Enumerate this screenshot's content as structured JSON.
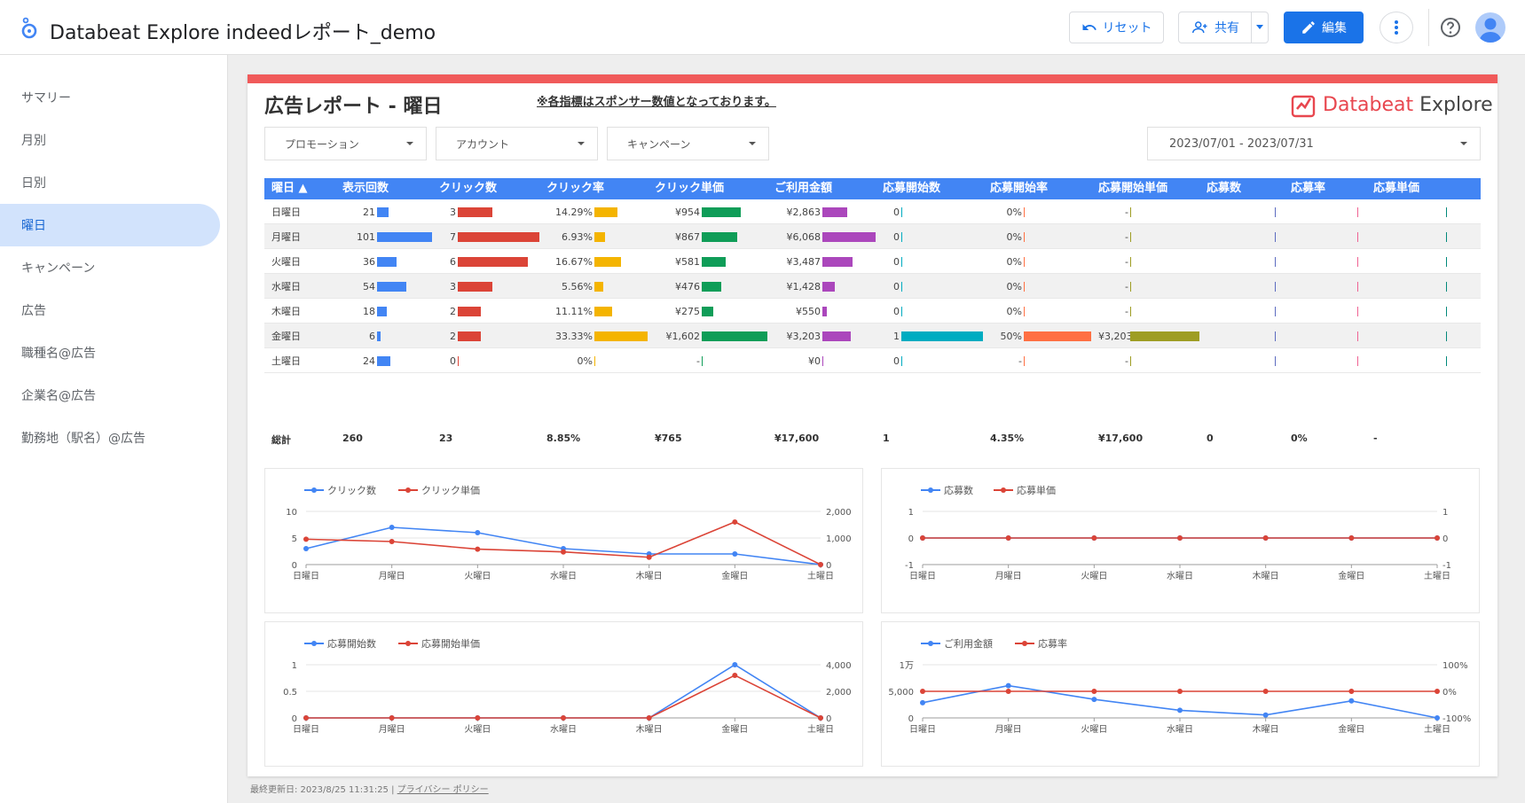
{
  "header": {
    "title": "Databeat Explore indeedレポート_demo",
    "reset_label": "リセット",
    "share_label": "共有",
    "edit_label": "編集"
  },
  "sidebar": {
    "items": [
      {
        "label": "サマリー",
        "active": false
      },
      {
        "label": "月別",
        "active": false
      },
      {
        "label": "日別",
        "active": false
      },
      {
        "label": "曜日",
        "active": true
      },
      {
        "label": "キャンペーン",
        "active": false
      },
      {
        "label": "広告",
        "active": false
      },
      {
        "label": "職種名@広告",
        "active": false
      },
      {
        "label": "企業名@広告",
        "active": false
      },
      {
        "label": "勤務地（駅名）@広告",
        "active": false
      }
    ]
  },
  "report": {
    "title": "広告レポート - 曜日",
    "note": "※各指標はスポンサー数値となっております。",
    "brand_a": "Databeat",
    "brand_b": " Explore",
    "filters": {
      "promotion": "プロモーション",
      "account": "アカウント",
      "campaign": "キャンペーン",
      "date_range": "2023/07/01 - 2023/07/31"
    }
  },
  "table": {
    "headers": [
      "曜日 ▲",
      "表示回数",
      "クリック数",
      "クリック率",
      "クリック単価",
      "ご利用金額",
      "応募開始数",
      "応募開始率",
      "応募開始単価",
      "応募数",
      "応募率",
      "応募単価"
    ],
    "bar_colors": [
      "#4285f4",
      "#db4437",
      "#f4b400",
      "#0f9d58",
      "#ab47bc",
      "#00acc1",
      "#ff7043",
      "#9e9d24",
      "#5c6bc0",
      "#f06292",
      "#00897b"
    ],
    "rows": [
      {
        "day": "日曜日",
        "labels": [
          "21",
          "3",
          "14.29%",
          "¥954",
          "¥2,863",
          "0",
          "0%",
          "-",
          "",
          "",
          ""
        ],
        "values": [
          21,
          3,
          14.29,
          954,
          2863,
          0,
          0,
          0,
          0,
          0,
          0
        ]
      },
      {
        "day": "月曜日",
        "labels": [
          "101",
          "7",
          "6.93%",
          "¥867",
          "¥6,068",
          "0",
          "0%",
          "-",
          "",
          "",
          ""
        ],
        "values": [
          101,
          7,
          6.93,
          867,
          6068,
          0,
          0,
          0,
          0,
          0,
          0
        ]
      },
      {
        "day": "火曜日",
        "labels": [
          "36",
          "6",
          "16.67%",
          "¥581",
          "¥3,487",
          "0",
          "0%",
          "-",
          "",
          "",
          ""
        ],
        "values": [
          36,
          6,
          16.67,
          581,
          3487,
          0,
          0,
          0,
          0,
          0,
          0
        ]
      },
      {
        "day": "水曜日",
        "labels": [
          "54",
          "3",
          "5.56%",
          "¥476",
          "¥1,428",
          "0",
          "0%",
          "-",
          "",
          "",
          ""
        ],
        "values": [
          54,
          3,
          5.56,
          476,
          1428,
          0,
          0,
          0,
          0,
          0,
          0
        ]
      },
      {
        "day": "木曜日",
        "labels": [
          "18",
          "2",
          "11.11%",
          "¥275",
          "¥550",
          "0",
          "0%",
          "-",
          "",
          "",
          ""
        ],
        "values": [
          18,
          2,
          11.11,
          275,
          550,
          0,
          0,
          0,
          0,
          0,
          0
        ]
      },
      {
        "day": "金曜日",
        "labels": [
          "6",
          "2",
          "33.33%",
          "¥1,602",
          "¥3,203",
          "1",
          "50%",
          "¥3,203",
          "",
          "",
          ""
        ],
        "values": [
          6,
          2,
          33.33,
          1602,
          3203,
          1,
          50,
          3203,
          0,
          0,
          0
        ]
      },
      {
        "day": "土曜日",
        "labels": [
          "24",
          "0",
          "0%",
          "-",
          "¥0",
          "0",
          "-",
          "-",
          "",
          "",
          ""
        ],
        "values": [
          24,
          0,
          0,
          0,
          0,
          0,
          0,
          0,
          0,
          0,
          0
        ]
      }
    ],
    "totals": [
      "総計",
      "260",
      "23",
      "8.85%",
      "¥765",
      "¥17,600",
      "1",
      "4.35%",
      "¥17,600",
      "0",
      "0%",
      "-"
    ]
  },
  "charts": [
    {
      "series": [
        {
          "name": "クリック数",
          "color": "#4285f4",
          "axis": "left",
          "values": [
            3,
            7,
            6,
            3,
            2,
            2,
            0
          ]
        },
        {
          "name": "クリック単価",
          "color": "#db4437",
          "axis": "right",
          "values": [
            954,
            867,
            581,
            476,
            275,
            1602,
            0
          ]
        }
      ],
      "categories": [
        "日曜日",
        "月曜日",
        "火曜日",
        "水曜日",
        "木曜日",
        "金曜日",
        "土曜日"
      ],
      "left_ticks": [
        "10",
        "5",
        "0"
      ],
      "left_range": [
        0,
        10
      ],
      "right_ticks": [
        "2,000",
        "1,000",
        "0"
      ],
      "right_range": [
        0,
        2000
      ]
    },
    {
      "series": [
        {
          "name": "応募数",
          "color": "#4285f4",
          "axis": "left",
          "values": [
            0,
            0,
            0,
            0,
            0,
            0,
            0
          ]
        },
        {
          "name": "応募単価",
          "color": "#db4437",
          "axis": "right",
          "values": [
            0,
            0,
            0,
            0,
            0,
            0,
            0
          ]
        }
      ],
      "categories": [
        "日曜日",
        "月曜日",
        "火曜日",
        "水曜日",
        "木曜日",
        "金曜日",
        "土曜日"
      ],
      "left_ticks": [
        "1",
        "0",
        "-1"
      ],
      "left_range": [
        -1,
        1
      ],
      "right_ticks": [
        "1",
        "0",
        "-1"
      ],
      "right_range": [
        -1,
        1
      ]
    },
    {
      "series": [
        {
          "name": "応募開始数",
          "color": "#4285f4",
          "axis": "left",
          "values": [
            0,
            0,
            0,
            0,
            0,
            1,
            0
          ]
        },
        {
          "name": "応募開始単価",
          "color": "#db4437",
          "axis": "right",
          "values": [
            0,
            0,
            0,
            0,
            0,
            3203,
            0
          ]
        }
      ],
      "categories": [
        "日曜日",
        "月曜日",
        "火曜日",
        "水曜日",
        "木曜日",
        "金曜日",
        "土曜日"
      ],
      "left_ticks": [
        "1",
        "0.5",
        "0"
      ],
      "left_range": [
        0,
        1
      ],
      "right_ticks": [
        "4,000",
        "2,000",
        "0"
      ],
      "right_range": [
        0,
        4000
      ]
    },
    {
      "series": [
        {
          "name": "ご利用金額",
          "color": "#4285f4",
          "axis": "left",
          "values": [
            2863,
            6068,
            3487,
            1428,
            550,
            3203,
            0
          ]
        },
        {
          "name": "応募率",
          "color": "#db4437",
          "axis": "right",
          "values": [
            0,
            0,
            0,
            0,
            0,
            0,
            0
          ]
        }
      ],
      "categories": [
        "日曜日",
        "月曜日",
        "火曜日",
        "水曜日",
        "木曜日",
        "金曜日",
        "土曜日"
      ],
      "left_ticks": [
        "1万",
        "5,000",
        "0"
      ],
      "left_range": [
        0,
        10000
      ],
      "right_ticks": [
        "100%",
        "0%",
        "-100%"
      ],
      "right_range": [
        -100,
        100
      ]
    }
  ],
  "footer": {
    "updated": "最終更新日: 2023/8/25 11:31:25",
    "sep": "|",
    "privacy": "プライバシー ポリシー"
  }
}
